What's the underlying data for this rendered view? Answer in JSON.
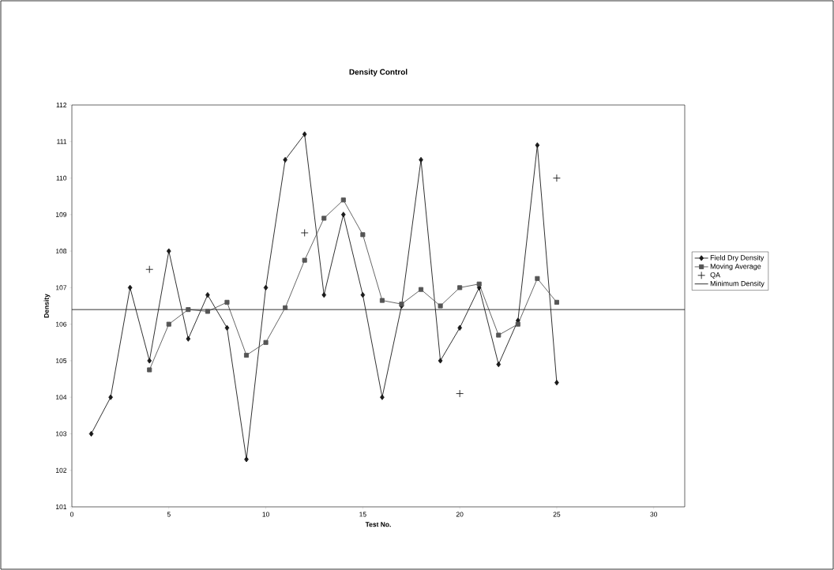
{
  "chart_data": {
    "type": "line",
    "title": "Density Control",
    "xlabel": "Test No.",
    "ylabel": "Density",
    "xlim": [
      0,
      31.6
    ],
    "xticks": [
      0,
      5,
      10,
      15,
      20,
      25,
      30
    ],
    "ylim": [
      101,
      112
    ],
    "yticks": [
      101,
      102,
      103,
      104,
      105,
      106,
      107,
      108,
      109,
      110,
      111,
      112
    ],
    "grid": false,
    "legend": "right",
    "series": [
      {
        "name": "Field Dry Density",
        "marker": "diamond",
        "color": "#1a1a1a",
        "x": [
          1,
          2,
          3,
          4,
          5,
          6,
          7,
          8,
          9,
          10,
          11,
          12,
          13,
          14,
          15,
          16,
          17,
          18,
          19,
          20,
          21,
          22,
          23,
          24,
          25
        ],
        "values": [
          103,
          104,
          107,
          105,
          108,
          105.6,
          106.8,
          105.9,
          102.3,
          107,
          110.5,
          111.2,
          106.8,
          109,
          106.8,
          104,
          106.5,
          110.5,
          105,
          105.9,
          107,
          104.9,
          106.1,
          110.9,
          104.4
        ]
      },
      {
        "name": "Moving Average",
        "marker": "square",
        "color": "#555555",
        "x": [
          4,
          5,
          6,
          7,
          8,
          9,
          10,
          11,
          12,
          13,
          14,
          15,
          16,
          17,
          18,
          19,
          20,
          21,
          22,
          23,
          24,
          25
        ],
        "values": [
          104.75,
          106.0,
          106.4,
          106.35,
          106.6,
          105.15,
          105.5,
          106.45,
          107.75,
          108.9,
          109.4,
          108.45,
          106.65,
          106.55,
          106.95,
          106.5,
          107.0,
          107.1,
          105.7,
          106.0,
          107.25,
          106.6
        ]
      },
      {
        "name": "QA",
        "type": "scatter",
        "marker": "cross",
        "color": "#1a1a1a",
        "x": [
          4,
          12,
          20,
          25
        ],
        "values": [
          107.5,
          108.5,
          104.1,
          110
        ]
      },
      {
        "name": "Minimum Density",
        "marker": "none",
        "color": "#1a1a1a",
        "x": [
          0,
          31.6
        ],
        "values": [
          106.4,
          106.4
        ]
      }
    ]
  }
}
